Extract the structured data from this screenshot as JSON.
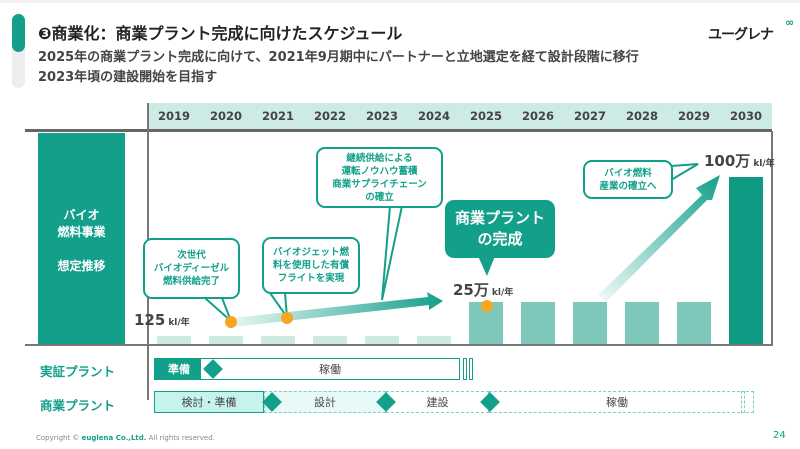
{
  "header": {
    "title": "❸商業化：商業プラント完成に向けたスケジュール",
    "subtitle_1": "2025年の商業プラント完成に向けて、2021年9月期中にパートナーと立地選定を経て設計段階に移行",
    "subtitle_2": "2023年頃の建設開始を目指す",
    "logo": "ユーグレナ"
  },
  "years": [
    "2019",
    "2020",
    "2021",
    "2022",
    "2023",
    "2024",
    "2025",
    "2026",
    "2027",
    "2028",
    "2029",
    "2030"
  ],
  "row_label": {
    "line1": "バイオ",
    "line2": "燃料事業",
    "line3": "想定推移"
  },
  "values": {
    "v2019": "125",
    "v2025": "25万",
    "v2030": "100万",
    "unit": "kl/年"
  },
  "callouts": {
    "c1": [
      "次世代",
      "バイオディーゼル",
      "燃料供給完了"
    ],
    "c2": [
      "バイオジェット燃",
      "料を使用した有償",
      "フライトを実現"
    ],
    "c3": [
      "継続供給による",
      "運転ノウハウ蓄積",
      "商業サプライチェーン",
      "の確立"
    ],
    "c4": [
      "商業プラント",
      "の完成"
    ],
    "c5": [
      "バイオ燃料",
      "産業の確立へ"
    ]
  },
  "gantt": {
    "demo_label": "実証プラント",
    "demo_prep": "準備",
    "demo_run": "稼働",
    "comm_label": "商業プラント",
    "comm_study": "検討・準備",
    "comm_design": "設計",
    "comm_build": "建設",
    "comm_run": "稼働"
  },
  "footer": {
    "copyright_pre": "Copyright © ",
    "company": "euglena Co.,Ltd.",
    "copyright_post": " All rights reserved.",
    "page": "24"
  },
  "colors": {
    "accent": "#13a08a",
    "highlight": "#f5a623"
  }
}
